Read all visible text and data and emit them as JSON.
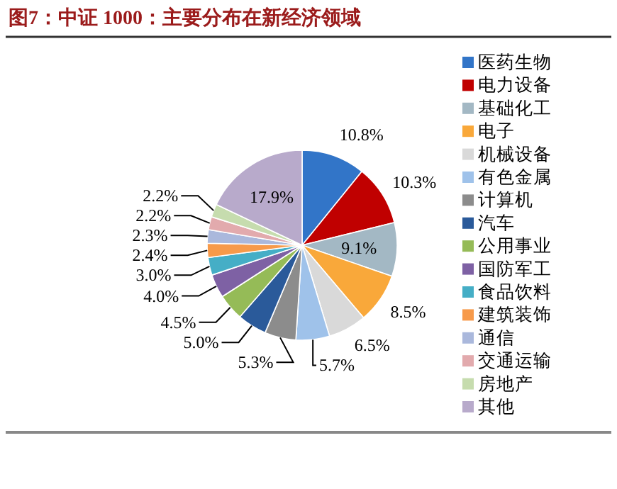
{
  "chart_data": {
    "type": "pie",
    "title": "图7：中证 1000：主要分布在新经济领域",
    "categories": [
      "医药生物",
      "电力设备",
      "基础化工",
      "电子",
      "机械设备",
      "有色金属",
      "计算机",
      "汽车",
      "公用事业",
      "国防军工",
      "食品饮料",
      "建筑装饰",
      "通信",
      "交通运输",
      "房地产",
      "其他"
    ],
    "values": [
      10.8,
      10.3,
      9.1,
      8.5,
      6.5,
      5.7,
      5.3,
      5.0,
      4.5,
      4.0,
      3.0,
      2.4,
      2.3,
      2.2,
      2.2,
      17.9
    ],
    "value_labels": [
      "10.8%",
      "10.3%",
      "9.1%",
      "8.5%",
      "6.5%",
      "5.7%",
      "5.3%",
      "5.0%",
      "4.5%",
      "4.0%",
      "3.0%",
      "2.4%",
      "2.3%",
      "2.2%",
      "2.2%",
      "17.9%"
    ],
    "colors": [
      "#3275c8",
      "#c00000",
      "#a3b8c4",
      "#f9a83a",
      "#d9d9d9",
      "#9fc2ea",
      "#8c8c8c",
      "#2a5a9a",
      "#95bb57",
      "#7e61a4",
      "#45aec6",
      "#f79a4a",
      "#aab8dc",
      "#e2aaad",
      "#c6dcae",
      "#b8aacb"
    ],
    "legend": "right"
  }
}
